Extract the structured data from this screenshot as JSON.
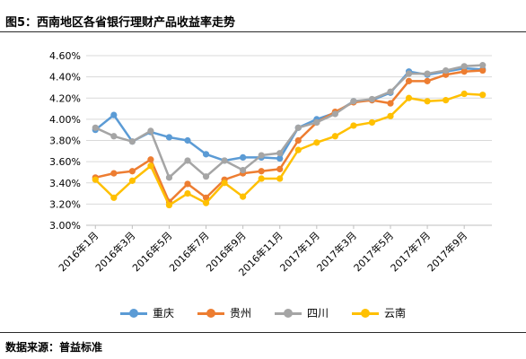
{
  "figure_title": "图5：西南地区各省银行理财产品收益率走势",
  "source": "数据来源：普益标准",
  "chart_data": {
    "type": "line",
    "title": "",
    "xlabel": "",
    "ylabel": "",
    "ylim": [
      3.0,
      4.6
    ],
    "y_ticks": [
      "3.00%",
      "3.20%",
      "3.40%",
      "3.60%",
      "3.80%",
      "4.00%",
      "4.20%",
      "4.40%",
      "4.60%"
    ],
    "x_tick_labels": [
      "2016年1月",
      "2016年3月",
      "2016年5月",
      "2016年7月",
      "2016年9月",
      "2016年11月",
      "2017年1月",
      "2017年3月",
      "2017年5月",
      "2017年7月",
      "2017年9月"
    ],
    "x_tick_every": 2,
    "grid": true,
    "legend_position": "bottom",
    "periods": 22,
    "series": [
      {
        "name": "重庆",
        "color": "#5B9BD5",
        "values": [
          3.9,
          4.04,
          3.79,
          3.88,
          3.83,
          3.8,
          3.67,
          3.61,
          3.64,
          3.64,
          3.63,
          3.92,
          4.0,
          4.06,
          4.17,
          4.18,
          4.25,
          4.45,
          4.42,
          4.45,
          4.48,
          4.47
        ]
      },
      {
        "name": "贵州",
        "color": "#ED7D31",
        "values": [
          3.45,
          3.49,
          3.51,
          3.62,
          3.22,
          3.39,
          3.26,
          3.43,
          3.49,
          3.51,
          3.53,
          3.8,
          3.97,
          4.07,
          4.16,
          4.18,
          4.15,
          4.36,
          4.36,
          4.42,
          4.45,
          4.46
        ]
      },
      {
        "name": "四川",
        "color": "#A5A5A5",
        "values": [
          3.92,
          3.84,
          3.79,
          3.89,
          3.45,
          3.61,
          3.46,
          3.61,
          3.52,
          3.66,
          3.68,
          3.92,
          3.97,
          4.05,
          4.17,
          4.19,
          4.26,
          4.43,
          4.43,
          4.46,
          4.5,
          4.51
        ]
      },
      {
        "name": "云南",
        "color": "#FFC000",
        "values": [
          3.43,
          3.26,
          3.42,
          3.56,
          3.19,
          3.3,
          3.21,
          3.4,
          3.27,
          3.44,
          3.44,
          3.71,
          3.78,
          3.84,
          3.94,
          3.97,
          4.03,
          4.2,
          4.17,
          4.18,
          4.24,
          4.23
        ]
      }
    ]
  }
}
